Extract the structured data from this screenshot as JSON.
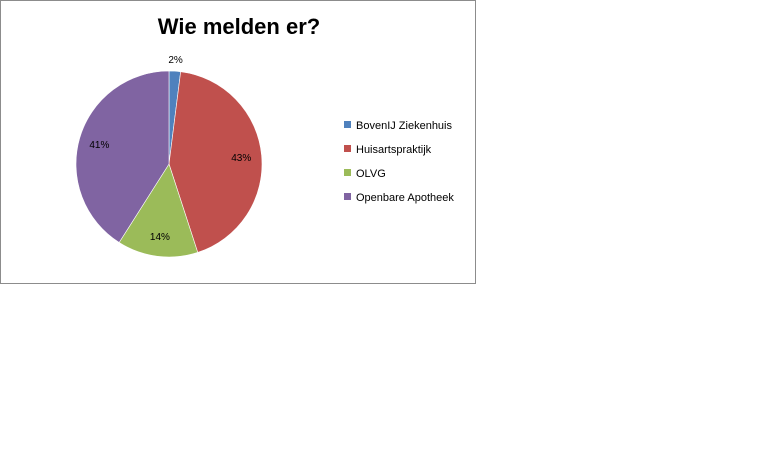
{
  "chart_data": {
    "type": "pie",
    "title": "Wie melden er?",
    "categories": [
      "BovenIJ Ziekenhuis",
      "Huisartspraktijk",
      "OLVG",
      "Openbare Apotheek"
    ],
    "values": [
      2,
      43,
      14,
      41
    ],
    "data_labels": [
      "2%",
      "43%",
      "14%",
      "41%"
    ],
    "colors": [
      "#4F81BD",
      "#C0504D",
      "#9BBB59",
      "#8064A2"
    ],
    "legend_position": "right",
    "start_angle": "top",
    "direction": "clockwise"
  }
}
